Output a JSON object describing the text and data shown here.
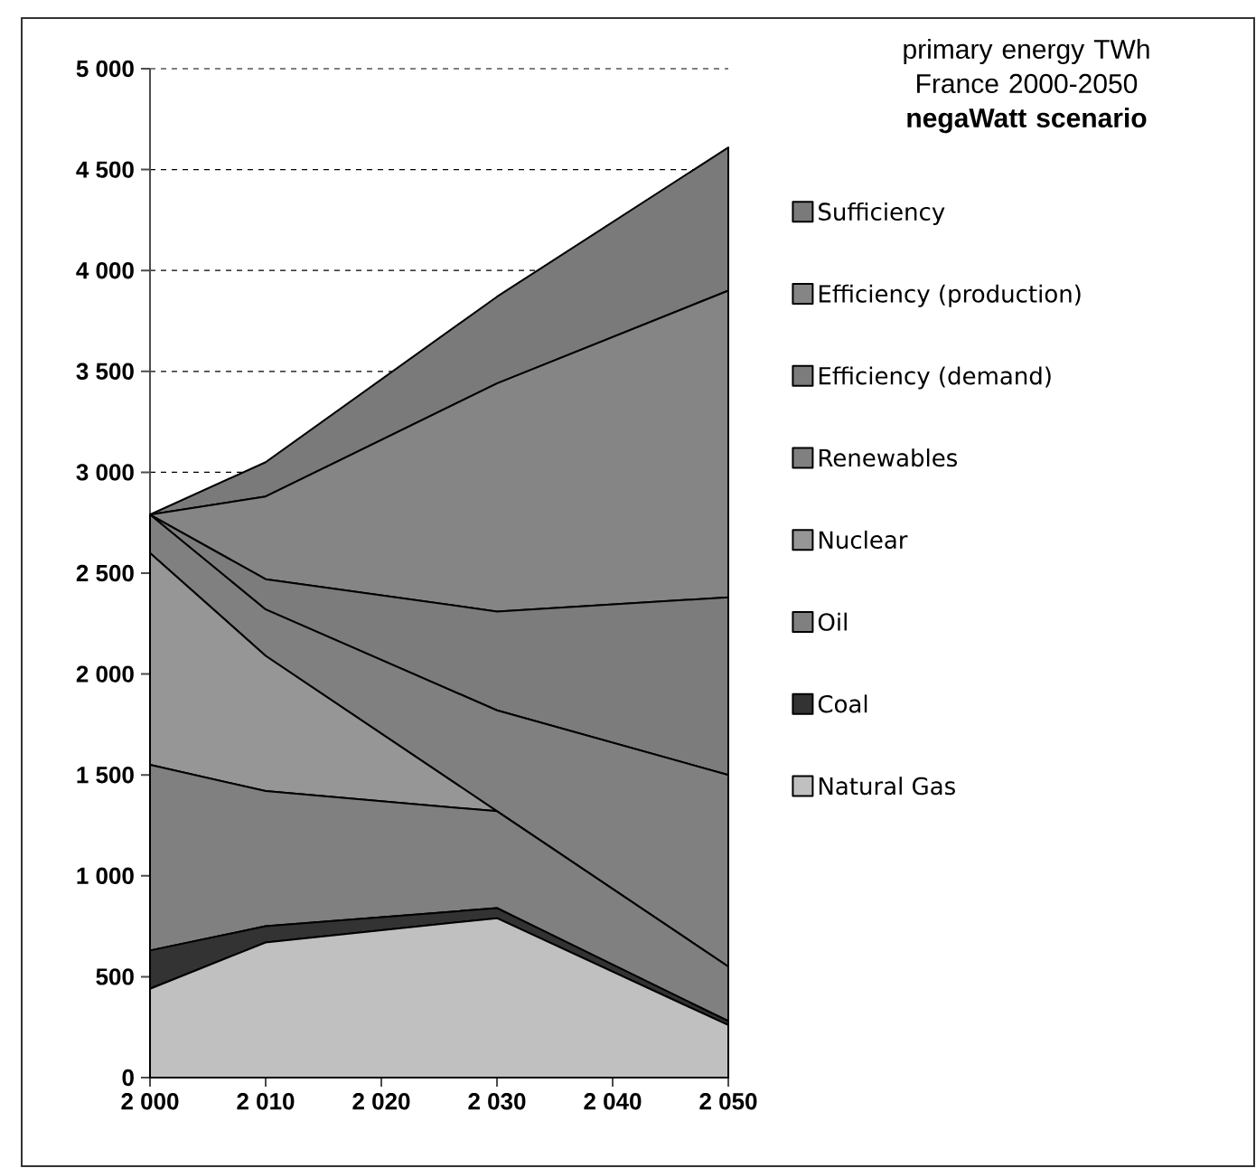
{
  "chart_data": {
    "type": "area",
    "title": "primary energy TWh France 2000-2050",
    "subtitle": "negaWatt scenario",
    "stacked": true,
    "x": [
      2000,
      2010,
      2030,
      2050
    ],
    "series": [
      {
        "name": "Natural Gas",
        "color": "#c0c0c0",
        "values": [
          440,
          670,
          790,
          260
        ]
      },
      {
        "name": "Coal",
        "color": "#333333",
        "values": [
          190,
          80,
          50,
          20
        ]
      },
      {
        "name": "Oil",
        "color": "#808080",
        "values": [
          920,
          670,
          480,
          270
        ]
      },
      {
        "name": "Nuclear",
        "color": "#969696",
        "values": [
          1050,
          670,
          0,
          0
        ]
      },
      {
        "name": "Renewables",
        "color": "#808080",
        "values": [
          190,
          230,
          500,
          950
        ]
      },
      {
        "name": "Efficiency (demand)",
        "color": "#7c7c7c",
        "values": [
          0,
          150,
          490,
          880
        ]
      },
      {
        "name": "Efficiency (production)",
        "color": "#858585",
        "values": [
          0,
          410,
          1130,
          1520
        ]
      },
      {
        "name": "Sufficiency",
        "color": "#7a7a7a",
        "values": [
          0,
          170,
          430,
          710
        ]
      }
    ],
    "xlim": [
      2000,
      2050
    ],
    "xticks": [
      {
        "value": 2000,
        "label": "2 000"
      },
      {
        "value": 2010,
        "label": "2 010"
      },
      {
        "value": 2020,
        "label": "2 020"
      },
      {
        "value": 2030,
        "label": "2 030"
      },
      {
        "value": 2040,
        "label": "2 040"
      },
      {
        "value": 2050,
        "label": "2 050"
      }
    ],
    "ylim": [
      0,
      5000
    ],
    "yticks": [
      0,
      500,
      {
        "value": 1000,
        "label": "1 000"
      },
      {
        "value": 1500,
        "label": "1 500"
      },
      {
        "value": 2000,
        "label": "2 000"
      },
      {
        "value": 2500,
        "label": "2 500"
      },
      {
        "value": 3000,
        "label": "3 000"
      },
      {
        "value": 3500,
        "label": "3 500"
      },
      {
        "value": 4000,
        "label": "4 000"
      },
      {
        "value": 4500,
        "label": "4 500"
      },
      {
        "value": 5000,
        "label": "5 000"
      }
    ],
    "grid": "y",
    "legend": "right"
  }
}
